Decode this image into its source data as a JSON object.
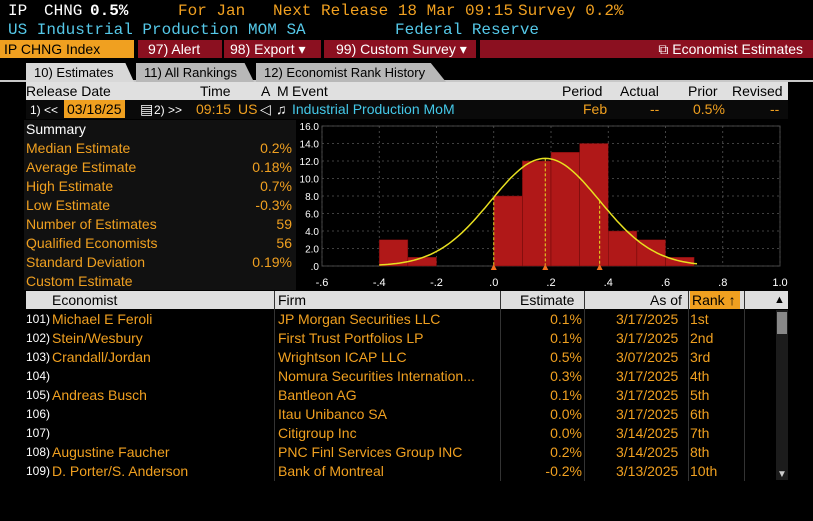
{
  "header": {
    "ticker": "IP",
    "metric": "CHNG",
    "value": "0.5%",
    "for_label": "For Jan",
    "next_release_label": "Next Release 18 Mar 09:15",
    "survey_label": "Survey 0.2%",
    "subtitle": "US Industrial Production MOM SA",
    "source": "Federal Reserve"
  },
  "toolbar": {
    "index_label": "IP CHNG Index",
    "alert": "97) Alert",
    "export": "98) Export",
    "custom_survey": "99) Custom Survey",
    "economist_estimates": "Economist Estimates"
  },
  "tabs": [
    {
      "label": "10) Estimates"
    },
    {
      "label": "11) All Rankings"
    },
    {
      "label": "12) Economist Rank History"
    }
  ],
  "release_header": {
    "release_date": "Release Date",
    "time": "Time",
    "a": "A",
    "m": "M",
    "event": "Event",
    "period": "Period",
    "actual": "Actual",
    "prior": "Prior",
    "revised": "Revised"
  },
  "release_row": {
    "prev": "1) <<",
    "date": "03/18/25",
    "next": "2) >>",
    "time": "09:15",
    "country": "US",
    "event": "Industrial Production MoM",
    "period": "Feb",
    "actual": "--",
    "prior": "0.5%",
    "revised": "--"
  },
  "summary": {
    "title": "Summary",
    "rows": [
      {
        "label": "Median Estimate",
        "value": "0.2%"
      },
      {
        "label": "Average Estimate",
        "value": "0.18%"
      },
      {
        "label": "High Estimate",
        "value": "0.7%"
      },
      {
        "label": "Low Estimate",
        "value": "-0.3%"
      },
      {
        "label": "Number of Estimates",
        "value": "59"
      },
      {
        "label": "Qualified Economists",
        "value": "56"
      },
      {
        "label": "Standard Deviation",
        "value": "0.19%"
      },
      {
        "label": "Custom Estimate",
        "value": ""
      }
    ]
  },
  "chart_data": {
    "type": "bar",
    "x_bin_edges": [
      -0.4,
      -0.3,
      -0.2,
      -0.1,
      0.0,
      0.1,
      0.2,
      0.3,
      0.4,
      0.5,
      0.6,
      0.7
    ],
    "values": [
      3,
      1,
      0,
      0,
      8,
      12,
      13,
      14,
      4,
      3,
      1
    ],
    "ylim": [
      0,
      16
    ],
    "yticks": [
      "16.0",
      "14.0",
      "12.0",
      "10.0",
      "8.0",
      "6.0",
      "4.0",
      "2.0",
      ".0"
    ],
    "xticks": [
      "-.6",
      "-.4",
      "-.2",
      ".0",
      ".2",
      ".4",
      ".6",
      ".8",
      "1.0"
    ],
    "xlim": [
      -0.6,
      1.0
    ],
    "normal_curve": {
      "mean": 0.18,
      "std": 0.19
    },
    "markers": [
      0.0,
      0.18,
      0.37
    ],
    "colors": {
      "bar": "#b01818",
      "curve": "#e8e020",
      "grid": "#555555"
    }
  },
  "table": {
    "headers": {
      "economist": "Economist",
      "firm": "Firm",
      "estimate": "Estimate",
      "as_of": "As of",
      "rank": "Rank"
    },
    "rows": [
      {
        "num": "101)",
        "economist": "Michael E Feroli",
        "firm": "JP Morgan Securities LLC",
        "estimate": "0.1%",
        "as_of": "3/17/2025",
        "rank": "1st"
      },
      {
        "num": "102)",
        "economist": "Stein/Wesbury",
        "firm": "First Trust Portfolios LP",
        "estimate": "0.1%",
        "as_of": "3/17/2025",
        "rank": "2nd"
      },
      {
        "num": "103)",
        "economist": "Crandall/Jordan",
        "firm": "Wrightson ICAP LLC",
        "estimate": "0.5%",
        "as_of": "3/07/2025",
        "rank": "3rd"
      },
      {
        "num": "104)",
        "economist": "",
        "firm": "Nomura Securities Internation...",
        "estimate": "0.3%",
        "as_of": "3/17/2025",
        "rank": "4th"
      },
      {
        "num": "105)",
        "economist": "Andreas Busch",
        "firm": "Bantleon AG",
        "estimate": "0.1%",
        "as_of": "3/17/2025",
        "rank": "5th"
      },
      {
        "num": "106)",
        "economist": "",
        "firm": "Itau Unibanco SA",
        "estimate": "0.0%",
        "as_of": "3/17/2025",
        "rank": "6th"
      },
      {
        "num": "107)",
        "economist": "",
        "firm": "Citigroup Inc",
        "estimate": "0.0%",
        "as_of": "3/14/2025",
        "rank": "7th"
      },
      {
        "num": "108)",
        "economist": "Augustine Faucher",
        "firm": "PNC Finl Services Group INC",
        "estimate": "0.2%",
        "as_of": "3/14/2025",
        "rank": "8th"
      },
      {
        "num": "109)",
        "economist": "D. Porter/S. Anderson",
        "firm": "Bank of Montreal",
        "estimate": "-0.2%",
        "as_of": "3/13/2025",
        "rank": "10th"
      }
    ]
  }
}
